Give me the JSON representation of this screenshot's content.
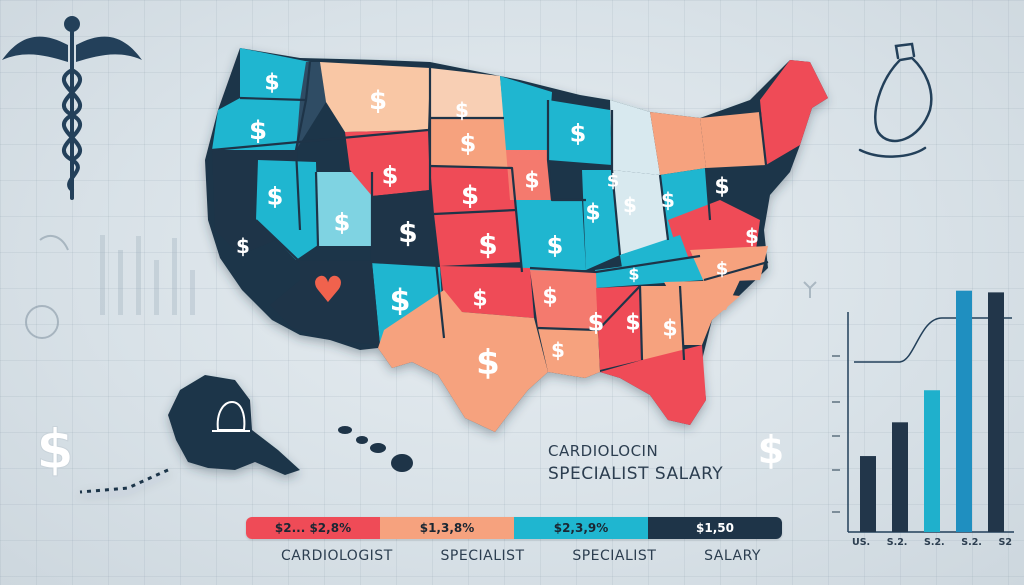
{
  "map": {
    "title_line_1": "CARDIOLOCIN",
    "title_line_2": "SPECIALIST SALARY",
    "dollar_glyph": "$",
    "heart_glyph": "♥"
  },
  "legend": {
    "items": [
      {
        "text": "$2... $2,8%",
        "color": "#ef4b57"
      },
      {
        "text": "$1,3,8%",
        "color": "#f6a27e"
      },
      {
        "text": "$2,3,9%",
        "color": "#1fb6d0"
      },
      {
        "text": "$1,50",
        "color": "#1e3448"
      }
    ]
  },
  "bottom_labels": [
    "CARDIOLOGIST",
    "SPECIALIST",
    "SPECIALIST",
    "SALARY"
  ],
  "chart_data": {
    "type": "bar",
    "categories": [
      "US.",
      "S.2.",
      "S.2.",
      "S.2.",
      "S2"
    ],
    "values": [
      4.5,
      6.5,
      8.4,
      14.3,
      14.2
    ],
    "colors": [
      "#22364a",
      "#22364a",
      "#1fb0cc",
      "#1f8fc0",
      "#22364a"
    ],
    "ylim": [
      0,
      16
    ]
  },
  "colors": {
    "navy": "#1e3448",
    "teal": "#1fb6d0",
    "red": "#ef4b57",
    "salmon": "#f6a27e"
  }
}
